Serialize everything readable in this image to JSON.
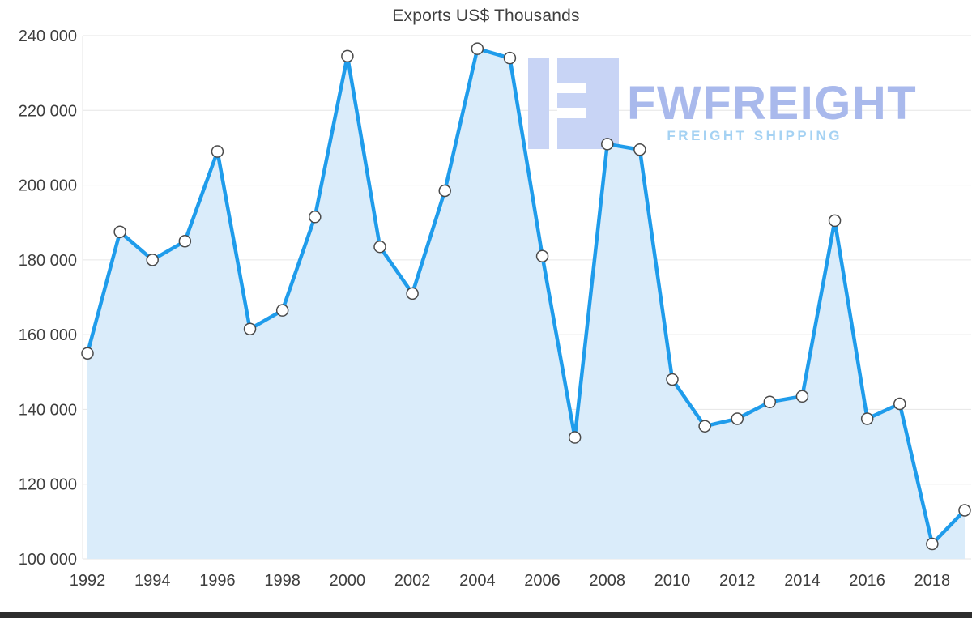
{
  "page": {
    "background": "#ffffff"
  },
  "chart_data": {
    "type": "area",
    "title": "Exports US$ Thousands",
    "x": [
      1992,
      1993,
      1994,
      1995,
      1996,
      1997,
      1998,
      1999,
      2000,
      2001,
      2002,
      2003,
      2004,
      2005,
      2006,
      2007,
      2008,
      2009,
      2010,
      2011,
      2012,
      2013,
      2014,
      2015,
      2016,
      2017,
      2018,
      2019
    ],
    "values": [
      155000,
      187500,
      180000,
      185000,
      209000,
      161500,
      166500,
      191500,
      234500,
      183500,
      171000,
      198500,
      236500,
      234000,
      181000,
      132500,
      211000,
      209500,
      148000,
      135500,
      137500,
      142000,
      143500,
      190500,
      137500,
      141500,
      104000,
      113000
    ],
    "ylim": [
      100000,
      240000
    ],
    "ytick_step": 20000,
    "ytick_labels": [
      "100 000",
      "120 000",
      "140 000",
      "160 000",
      "180 000",
      "200 000",
      "220 000",
      "240 000"
    ],
    "xtick_years": [
      1992,
      1994,
      1996,
      1998,
      2000,
      2002,
      2004,
      2006,
      2008,
      2010,
      2012,
      2014,
      2016,
      2018
    ],
    "grid": "horizontal",
    "legend": "none",
    "line_color": "#1f9ceb",
    "area_color": "#daecfa",
    "grid_color": "#e6e6e6",
    "axis_text_color": "#3d3d3d",
    "marker_fill": "#ffffff",
    "marker_stroke": "#4a4a4a"
  },
  "watermark": {
    "brand": "FWFREIGHT",
    "tagline": "FREIGHT SHIPPING",
    "brand_color": "#a9b9ec",
    "tagline_color": "#a5d2f3",
    "logo_color": "#c8d4f5"
  }
}
